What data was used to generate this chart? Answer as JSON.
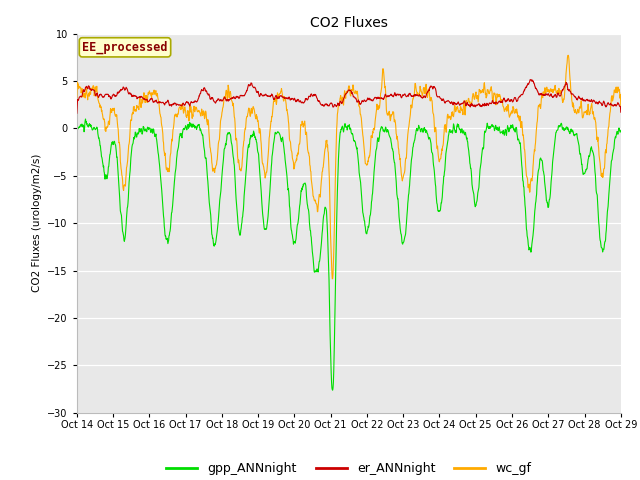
{
  "title": "CO2 Fluxes",
  "ylabel": "CO2 Fluxes (urology/m2/s)",
  "ylim": [
    -30,
    10
  ],
  "yticks": [
    -30,
    -25,
    -20,
    -15,
    -10,
    -5,
    0,
    5,
    10
  ],
  "bg_color": "#e8e8e8",
  "fig_color": "#ffffff",
  "annotation_text": "EE_processed",
  "annotation_color": "#880000",
  "annotation_bg": "#ffffcc",
  "annotation_border": "#aaaa00",
  "gpp_color": "#00dd00",
  "er_color": "#cc0000",
  "wc_color": "#ffaa00",
  "legend_labels": [
    "gpp_ANNnight",
    "er_ANNnight",
    "wc_gf"
  ],
  "xtick_labels": [
    "Oct 14",
    "Oct 15",
    "Oct 16",
    "Oct 17",
    "Oct 18",
    "Oct 19",
    "Oct 20",
    "Oct 21",
    "Oct 22",
    "Oct 23",
    "Oct 24",
    "Oct 25",
    "Oct 26",
    "Oct 27",
    "Oct 28",
    "Oct 29"
  ],
  "num_points": 1500,
  "random_seed": 42
}
